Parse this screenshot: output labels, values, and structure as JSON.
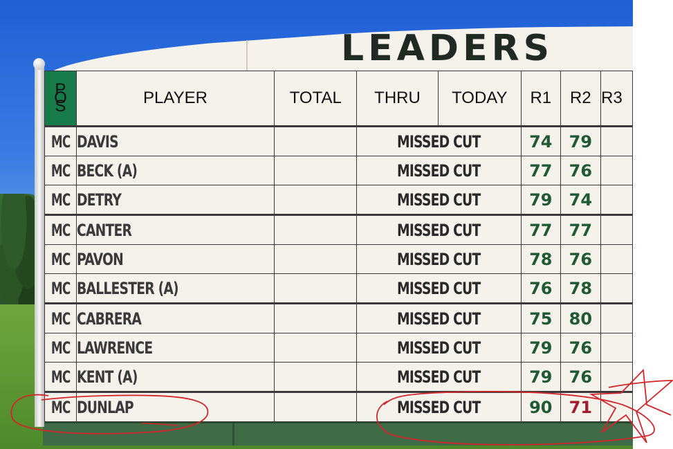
{
  "board": {
    "title": "LEADERS",
    "headers": {
      "pos": "POS",
      "player": "PLAYER",
      "total": "TOTAL",
      "thru": "THRU",
      "today": "TODAY",
      "r1": "R1",
      "r2": "R2",
      "r3": "R3"
    },
    "rows": [
      {
        "pos": "MC",
        "player": "DAVIS",
        "status": "MISSED CUT",
        "r1": "74",
        "r2": "79"
      },
      {
        "pos": "MC",
        "player": "BECK (A)",
        "status": "MISSED CUT",
        "r1": "77",
        "r2": "76"
      },
      {
        "pos": "MC",
        "player": "DETRY",
        "status": "MISSED CUT",
        "r1": "79",
        "r2": "74"
      },
      {
        "pos": "MC",
        "player": "CANTER",
        "status": "MISSED CUT",
        "r1": "77",
        "r2": "77"
      },
      {
        "pos": "MC",
        "player": "PAVON",
        "status": "MISSED CUT",
        "r1": "78",
        "r2": "76"
      },
      {
        "pos": "MC",
        "player": "BALLESTER (A)",
        "status": "MISSED CUT",
        "r1": "76",
        "r2": "78"
      },
      {
        "pos": "MC",
        "player": "CABRERA",
        "status": "MISSED CUT",
        "r1": "75",
        "r2": "80"
      },
      {
        "pos": "MC",
        "player": "LAWRENCE",
        "status": "MISSED CUT",
        "r1": "79",
        "r2": "76"
      },
      {
        "pos": "MC",
        "player": "KENT (A)",
        "status": "MISSED CUT",
        "r1": "79",
        "r2": "76"
      },
      {
        "pos": "MC",
        "player": "DUNLAP",
        "status": "MISSED CUT",
        "r1": "90",
        "r2": "71"
      }
    ]
  },
  "colors": {
    "header_pos_bg": "#177a4a",
    "score_green": "#1f5a35",
    "score_red": "#a01c2e",
    "annotation_red": "#d2262a",
    "board_bg": "#f5f2ec"
  },
  "annotations": {
    "icons": [
      "circle-player-annotation",
      "circle-status-annotation",
      "star-annotation"
    ]
  }
}
